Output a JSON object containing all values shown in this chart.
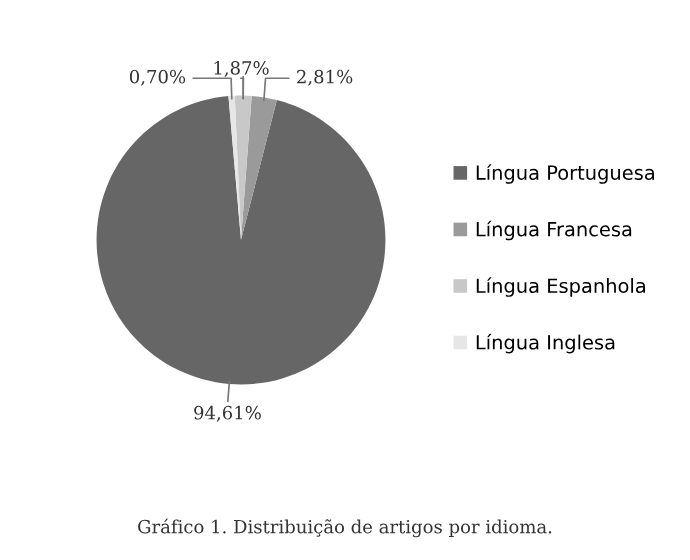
{
  "chart_data": {
    "type": "pie",
    "categories": [
      "Língua Portuguesa",
      "Língua Francesa",
      "Língua Espanhola",
      "Língua Inglesa"
    ],
    "values": [
      94.61,
      2.81,
      1.87,
      0.7
    ],
    "colors": [
      "#666666",
      "#9a9a9a",
      "#c8c8c8",
      "#e6e6e6"
    ],
    "value_labels": [
      "94,61%",
      "2,81%",
      "1,87%",
      "0,70%"
    ],
    "legend": "right",
    "annotations": [
      "Gráfico 1. Distribuição de artigos por idioma."
    ]
  }
}
